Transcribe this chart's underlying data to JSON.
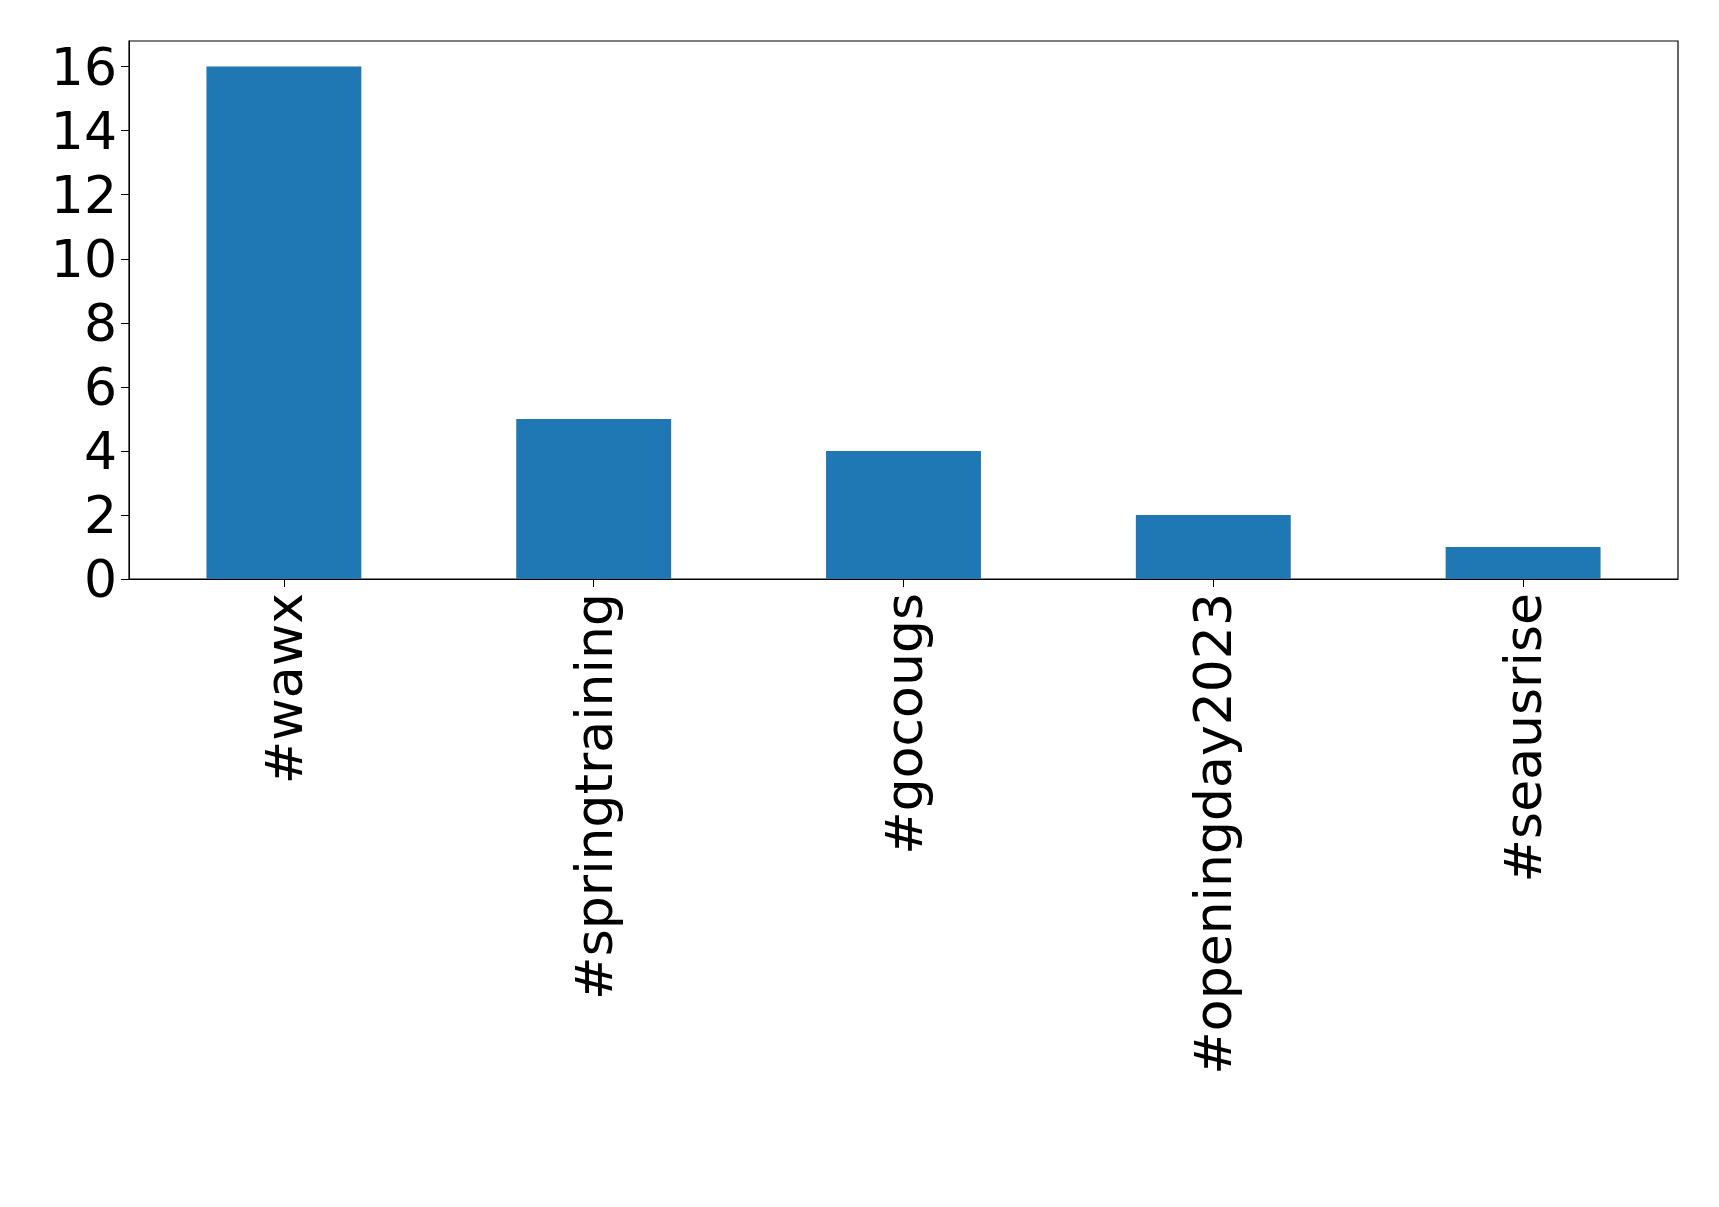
{
  "chart_data": {
    "type": "bar",
    "categories": [
      "#wawx",
      "#springtraining",
      "#gocougs",
      "#openingday2023",
      "#seausrise"
    ],
    "values": [
      16,
      5,
      4,
      2,
      1
    ],
    "color": "#1f77b4",
    "ylim": [
      0,
      16.8
    ],
    "yticks": [
      0,
      2,
      4,
      6,
      8,
      10,
      12,
      14,
      16
    ],
    "grid": false
  }
}
